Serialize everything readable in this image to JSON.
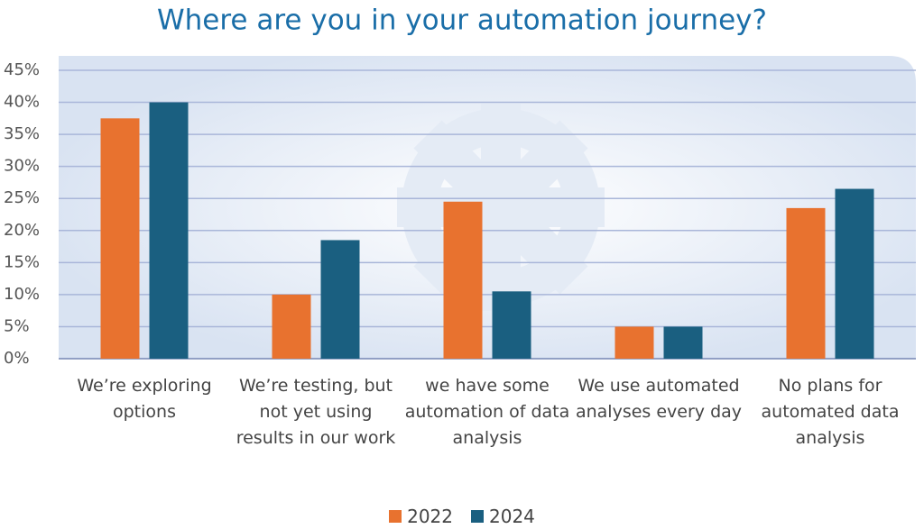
{
  "chart_data": {
    "type": "bar",
    "title": "Where are you in your automation journey?",
    "categories": [
      "We’re exploring options",
      "We’re testing, but not yet using results in our work",
      "we have some automation of data analysis",
      "We use automated analyses every day",
      "No plans for automated data analysis"
    ],
    "series": [
      {
        "name": "2022",
        "color": "#e8722f",
        "values": [
          37.5,
          10,
          24.5,
          5,
          23.5
        ]
      },
      {
        "name": "2024",
        "color": "#1a5f80",
        "values": [
          40,
          18.5,
          10.5,
          5,
          26.5
        ]
      }
    ],
    "ylim": [
      0,
      45
    ],
    "yticks": [
      {
        "value": 0,
        "label": "0%"
      },
      {
        "value": 5,
        "label": "5%"
      },
      {
        "value": 10,
        "label": "10%"
      },
      {
        "value": 15,
        "label": "15%"
      },
      {
        "value": 20,
        "label": "20%"
      },
      {
        "value": 25,
        "label": "25%"
      },
      {
        "value": 30,
        "label": "30%"
      },
      {
        "value": 35,
        "label": "35%"
      },
      {
        "value": 40,
        "label": "40%"
      },
      {
        "value": 45,
        "label": "45%"
      }
    ],
    "grid": true,
    "legend": "bottom"
  }
}
